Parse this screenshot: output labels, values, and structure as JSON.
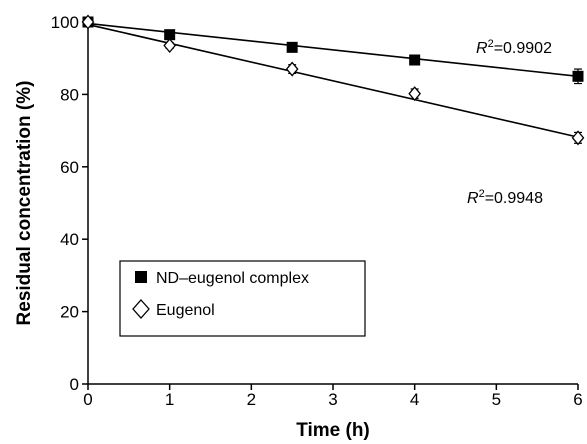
{
  "chart_data": {
    "type": "scatter",
    "title": "",
    "xlabel": "Time (h)",
    "ylabel": "Residual concentration (%)",
    "xlim": [
      0,
      6
    ],
    "ylim": [
      0,
      100
    ],
    "x_ticks": [
      "0",
      "1",
      "2",
      "3",
      "4",
      "5",
      "6"
    ],
    "y_ticks": [
      "0",
      "20",
      "40",
      "60",
      "80",
      "100"
    ],
    "grid": false,
    "legend_position": "lower-left",
    "series": [
      {
        "name": "ND–eugenol complex",
        "marker": "filled-square",
        "color": "#000000",
        "x": [
          0,
          1,
          2.5,
          4,
          6
        ],
        "y": [
          100,
          96.5,
          93,
          89.5,
          85
        ],
        "error": [
          0,
          0.5,
          0.8,
          0.8,
          2
        ],
        "fit": {
          "x0": 0,
          "y0": 99.6,
          "x1": 6,
          "y1": 85,
          "r2_label": "R",
          "r2_exp": "2",
          "r2_value": "=0.9902"
        }
      },
      {
        "name": "Eugenol",
        "marker": "open-diamond",
        "color": "#000000",
        "x": [
          0,
          1,
          2.5,
          4,
          6
        ],
        "y": [
          100,
          93.5,
          87,
          80.2,
          68
        ],
        "error": [
          0,
          0.8,
          1.2,
          1.3,
          1.5
        ],
        "fit": {
          "x0": 0,
          "y0": 99.3,
          "x1": 6,
          "y1": 68.2,
          "r2_label": "R",
          "r2_exp": "2",
          "r2_value": "=0.9948"
        }
      }
    ]
  }
}
